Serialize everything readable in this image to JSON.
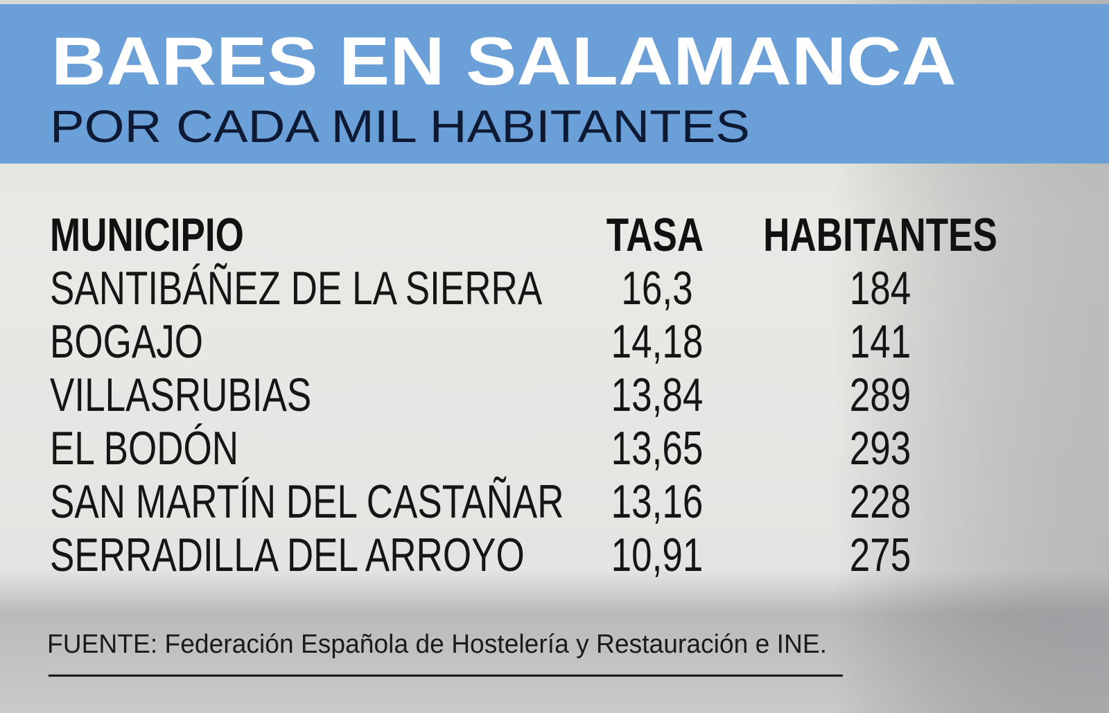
{
  "header": {
    "title": "BARES EN SALAMANCA",
    "subtitle": "POR CADA MIL HABITANTES"
  },
  "table": {
    "columns": [
      "MUNICIPIO",
      "TASA",
      "HABITANTES"
    ],
    "rows": [
      [
        "SANTIBÁÑEZ DE LA SIERRA",
        "16,3",
        "184"
      ],
      [
        "BOGAJO",
        "14,18",
        "141"
      ],
      [
        "VILLASRUBIAS",
        "13,84",
        "289"
      ],
      [
        "EL BODÓN",
        "13,65",
        "293"
      ],
      [
        "SAN MARTÍN DEL CASTAÑAR",
        "13,16",
        "228"
      ],
      [
        "SERRADILLA DEL ARROYO",
        "10,91",
        "275"
      ]
    ]
  },
  "source": "FUENTE: Federación Española de Hostelería y Restauración e INE."
}
